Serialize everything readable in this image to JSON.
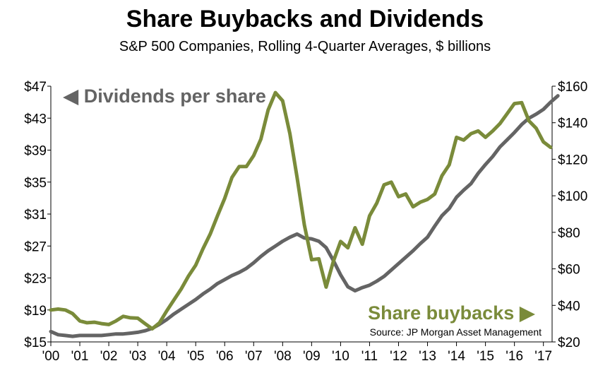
{
  "chart_data": {
    "type": "line",
    "title": "Share Buybacks and Dividends",
    "subtitle": "S&P 500 Companies, Rolling 4-Quarter Averages, $ billions",
    "x_tick_labels": [
      "'00",
      "'01",
      "'02",
      "'03",
      "'04",
      "'05",
      "'06",
      "'07",
      "'08",
      "'09",
      "'10",
      "'11",
      "'12",
      "'13",
      "'14",
      "'15",
      "'16",
      "'17"
    ],
    "x_range": [
      2000,
      2017.3
    ],
    "y_left": {
      "ticks": [
        "$47",
        "$43",
        "$39",
        "$35",
        "$31",
        "$27",
        "$23",
        "$19",
        "$15"
      ],
      "range": [
        15,
        47
      ]
    },
    "y_right": {
      "ticks": [
        "$160",
        "$140",
        "$120",
        "$100",
        "$80",
        "$60",
        "$40",
        "$20"
      ],
      "range": [
        20,
        160
      ]
    },
    "grid": false,
    "series": [
      {
        "name": "Dividends per share",
        "axis": "left",
        "color": "#646464",
        "label_arrow": "◀",
        "points": [
          [
            2000.0,
            16.3
          ],
          [
            2000.25,
            15.9
          ],
          [
            2000.5,
            15.8
          ],
          [
            2000.75,
            15.7
          ],
          [
            2001.0,
            15.8
          ],
          [
            2001.25,
            15.8
          ],
          [
            2001.5,
            15.8
          ],
          [
            2001.75,
            15.8
          ],
          [
            2002.0,
            15.9
          ],
          [
            2002.25,
            16.0
          ],
          [
            2002.5,
            16.0
          ],
          [
            2002.75,
            16.1
          ],
          [
            2003.0,
            16.2
          ],
          [
            2003.25,
            16.4
          ],
          [
            2003.5,
            16.7
          ],
          [
            2003.75,
            17.2
          ],
          [
            2004.0,
            17.8
          ],
          [
            2004.25,
            18.5
          ],
          [
            2004.5,
            19.1
          ],
          [
            2004.75,
            19.7
          ],
          [
            2005.0,
            20.3
          ],
          [
            2005.25,
            21.0
          ],
          [
            2005.5,
            21.6
          ],
          [
            2005.75,
            22.3
          ],
          [
            2006.0,
            22.8
          ],
          [
            2006.25,
            23.3
          ],
          [
            2006.5,
            23.7
          ],
          [
            2006.75,
            24.2
          ],
          [
            2007.0,
            24.9
          ],
          [
            2007.25,
            25.7
          ],
          [
            2007.5,
            26.4
          ],
          [
            2007.75,
            27.0
          ],
          [
            2008.0,
            27.6
          ],
          [
            2008.25,
            28.1
          ],
          [
            2008.5,
            28.5
          ],
          [
            2008.75,
            28.0
          ],
          [
            2009.0,
            27.9
          ],
          [
            2009.25,
            27.6
          ],
          [
            2009.5,
            26.8
          ],
          [
            2009.75,
            25.2
          ],
          [
            2010.0,
            23.4
          ],
          [
            2010.25,
            21.9
          ],
          [
            2010.5,
            21.4
          ],
          [
            2010.75,
            21.8
          ],
          [
            2011.0,
            22.1
          ],
          [
            2011.25,
            22.6
          ],
          [
            2011.5,
            23.2
          ],
          [
            2011.75,
            24.0
          ],
          [
            2012.0,
            24.8
          ],
          [
            2012.25,
            25.6
          ],
          [
            2012.5,
            26.4
          ],
          [
            2012.75,
            27.3
          ],
          [
            2013.0,
            28.1
          ],
          [
            2013.25,
            29.5
          ],
          [
            2013.5,
            30.8
          ],
          [
            2013.75,
            31.7
          ],
          [
            2014.0,
            33.1
          ],
          [
            2014.25,
            34.0
          ],
          [
            2014.5,
            34.8
          ],
          [
            2014.75,
            36.1
          ],
          [
            2015.0,
            37.2
          ],
          [
            2015.25,
            38.2
          ],
          [
            2015.5,
            39.4
          ],
          [
            2015.75,
            40.3
          ],
          [
            2016.0,
            41.2
          ],
          [
            2016.25,
            42.2
          ],
          [
            2016.5,
            43.0
          ],
          [
            2016.75,
            43.5
          ],
          [
            2017.0,
            44.1
          ],
          [
            2017.25,
            45.0
          ],
          [
            2017.5,
            45.8
          ]
        ]
      },
      {
        "name": "Share buybacks",
        "axis": "right",
        "color": "#7a8b3a",
        "label_arrow": "▶",
        "points": [
          [
            2000.0,
            37.5
          ],
          [
            2000.25,
            38.0
          ],
          [
            2000.5,
            37.5
          ],
          [
            2000.75,
            35.5
          ],
          [
            2001.0,
            31.5
          ],
          [
            2001.25,
            30.5
          ],
          [
            2001.5,
            30.8
          ],
          [
            2001.75,
            30.0
          ],
          [
            2002.0,
            29.5
          ],
          [
            2002.25,
            31.5
          ],
          [
            2002.5,
            34.0
          ],
          [
            2002.75,
            33.2
          ],
          [
            2003.0,
            33.0
          ],
          [
            2003.25,
            30.0
          ],
          [
            2003.5,
            27.2
          ],
          [
            2003.75,
            30.5
          ],
          [
            2004.0,
            37.0
          ],
          [
            2004.25,
            43.0
          ],
          [
            2004.5,
            49.0
          ],
          [
            2004.75,
            56.0
          ],
          [
            2005.0,
            62.0
          ],
          [
            2005.25,
            71.0
          ],
          [
            2005.5,
            79.0
          ],
          [
            2005.75,
            89.0
          ],
          [
            2006.0,
            98.5
          ],
          [
            2006.25,
            110.0
          ],
          [
            2006.5,
            116.0
          ],
          [
            2006.75,
            116.0
          ],
          [
            2007.0,
            122.0
          ],
          [
            2007.25,
            131.0
          ],
          [
            2007.5,
            147.0
          ],
          [
            2007.75,
            156.5
          ],
          [
            2008.0,
            152.0
          ],
          [
            2008.25,
            134.0
          ],
          [
            2008.5,
            110.0
          ],
          [
            2008.75,
            84.0
          ],
          [
            2009.0,
            65.0
          ],
          [
            2009.25,
            65.5
          ],
          [
            2009.5,
            50.0
          ],
          [
            2009.75,
            64.0
          ],
          [
            2010.0,
            75.0
          ],
          [
            2010.25,
            71.5
          ],
          [
            2010.5,
            82.5
          ],
          [
            2010.75,
            73.5
          ],
          [
            2011.0,
            89.0
          ],
          [
            2011.25,
            96.0
          ],
          [
            2011.5,
            106.0
          ],
          [
            2011.75,
            107.5
          ],
          [
            2012.0,
            99.5
          ],
          [
            2012.25,
            101.0
          ],
          [
            2012.5,
            94.0
          ],
          [
            2012.75,
            96.5
          ],
          [
            2013.0,
            98.0
          ],
          [
            2013.25,
            101.0
          ],
          [
            2013.5,
            111.0
          ],
          [
            2013.75,
            117.0
          ],
          [
            2014.0,
            132.0
          ],
          [
            2014.25,
            130.5
          ],
          [
            2014.5,
            134.0
          ],
          [
            2014.75,
            135.5
          ],
          [
            2015.0,
            132.0
          ],
          [
            2015.25,
            135.5
          ],
          [
            2015.5,
            139.5
          ],
          [
            2015.75,
            145.0
          ],
          [
            2016.0,
            150.5
          ],
          [
            2016.25,
            151.0
          ],
          [
            2016.5,
            141.0
          ],
          [
            2016.75,
            137.0
          ],
          [
            2017.0,
            129.5
          ],
          [
            2017.25,
            126.5
          ]
        ]
      }
    ],
    "annotations": {
      "source": "Source: JP Morgan Asset Management"
    }
  }
}
